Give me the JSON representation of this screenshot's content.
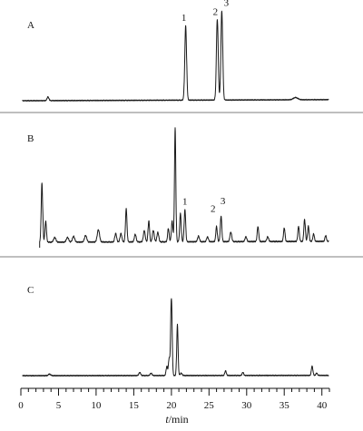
{
  "chart_data": {
    "type": "line",
    "xlabel_italic": "t",
    "xlabel_rest": "/min",
    "xlim": [
      0,
      41
    ],
    "x_ticks": [
      "0",
      "5",
      "10",
      "15",
      "20",
      "25",
      "30",
      "35",
      "40"
    ],
    "panels": [
      {
        "label": "A",
        "baseline": 0.0,
        "drift": 0.12,
        "peaks": [
          {
            "x": 3.6,
            "y": 0.05,
            "w": 0.12
          },
          {
            "x": 21.9,
            "y": 1.0,
            "w": 0.12
          },
          {
            "x": 26.1,
            "y": 1.08,
            "w": 0.12
          },
          {
            "x": 26.7,
            "y": 1.2,
            "w": 0.12
          },
          {
            "x": 36.5,
            "y": 0.03,
            "w": 0.3
          }
        ],
        "peak_labels": [
          {
            "text": "1",
            "x": 21.9
          },
          {
            "text": "2",
            "x": 26.1
          },
          {
            "text": "3",
            "x": 26.7
          }
        ]
      },
      {
        "label": "B",
        "baseline": 0.0,
        "drift": 0.08,
        "peaks": [
          {
            "x": 2.8,
            "y": 0.62,
            "w": 0.1
          },
          {
            "x": 3.3,
            "y": 0.22,
            "w": 0.1
          },
          {
            "x": 4.5,
            "y": 0.05,
            "w": 0.15
          },
          {
            "x": 6.2,
            "y": 0.05,
            "w": 0.15
          },
          {
            "x": 7.0,
            "y": 0.06,
            "w": 0.15
          },
          {
            "x": 8.6,
            "y": 0.07,
            "w": 0.15
          },
          {
            "x": 10.3,
            "y": 0.13,
            "w": 0.15
          },
          {
            "x": 12.6,
            "y": 0.09,
            "w": 0.12
          },
          {
            "x": 13.3,
            "y": 0.09,
            "w": 0.12
          },
          {
            "x": 14.0,
            "y": 0.35,
            "w": 0.1
          },
          {
            "x": 15.2,
            "y": 0.08,
            "w": 0.12
          },
          {
            "x": 16.4,
            "y": 0.12,
            "w": 0.12
          },
          {
            "x": 17.0,
            "y": 0.22,
            "w": 0.1
          },
          {
            "x": 17.6,
            "y": 0.12,
            "w": 0.12
          },
          {
            "x": 18.2,
            "y": 0.1,
            "w": 0.12
          },
          {
            "x": 19.6,
            "y": 0.14,
            "w": 0.1
          },
          {
            "x": 20.1,
            "y": 0.22,
            "w": 0.1
          },
          {
            "x": 20.5,
            "y": 1.2,
            "w": 0.09
          },
          {
            "x": 21.2,
            "y": 0.3,
            "w": 0.1
          },
          {
            "x": 21.8,
            "y": 0.34,
            "w": 0.1
          },
          {
            "x": 23.6,
            "y": 0.06,
            "w": 0.12
          },
          {
            "x": 24.8,
            "y": 0.05,
            "w": 0.12
          },
          {
            "x": 26.0,
            "y": 0.16,
            "w": 0.1
          },
          {
            "x": 26.6,
            "y": 0.27,
            "w": 0.1
          },
          {
            "x": 27.9,
            "y": 0.1,
            "w": 0.12
          },
          {
            "x": 29.9,
            "y": 0.05,
            "w": 0.12
          },
          {
            "x": 31.5,
            "y": 0.16,
            "w": 0.1
          },
          {
            "x": 32.8,
            "y": 0.05,
            "w": 0.12
          },
          {
            "x": 35.0,
            "y": 0.14,
            "w": 0.1
          },
          {
            "x": 36.9,
            "y": 0.16,
            "w": 0.1
          },
          {
            "x": 37.7,
            "y": 0.23,
            "w": 0.1
          },
          {
            "x": 38.2,
            "y": 0.16,
            "w": 0.1
          },
          {
            "x": 38.9,
            "y": 0.08,
            "w": 0.1
          },
          {
            "x": 40.5,
            "y": 0.06,
            "w": 0.1
          }
        ],
        "peak_labels": [
          {
            "text": "1",
            "x": 21.8
          },
          {
            "text": "2",
            "x": 25.9
          },
          {
            "text": "3",
            "x": 26.6
          }
        ]
      },
      {
        "label": "C",
        "baseline": 0.0,
        "drift": 0.03,
        "peaks": [
          {
            "x": 3.8,
            "y": 0.02,
            "w": 0.15
          },
          {
            "x": 15.8,
            "y": 0.04,
            "w": 0.12
          },
          {
            "x": 17.3,
            "y": 0.03,
            "w": 0.12
          },
          {
            "x": 19.4,
            "y": 0.12,
            "w": 0.1
          },
          {
            "x": 19.7,
            "y": 0.22,
            "w": 0.09
          },
          {
            "x": 20.0,
            "y": 1.0,
            "w": 0.1
          },
          {
            "x": 20.8,
            "y": 0.66,
            "w": 0.09
          },
          {
            "x": 21.3,
            "y": 0.03,
            "w": 0.12
          },
          {
            "x": 27.2,
            "y": 0.06,
            "w": 0.1
          },
          {
            "x": 29.5,
            "y": 0.04,
            "w": 0.1
          },
          {
            "x": 38.7,
            "y": 0.12,
            "w": 0.1
          },
          {
            "x": 39.3,
            "y": 0.03,
            "w": 0.1
          }
        ],
        "peak_labels": []
      }
    ]
  }
}
